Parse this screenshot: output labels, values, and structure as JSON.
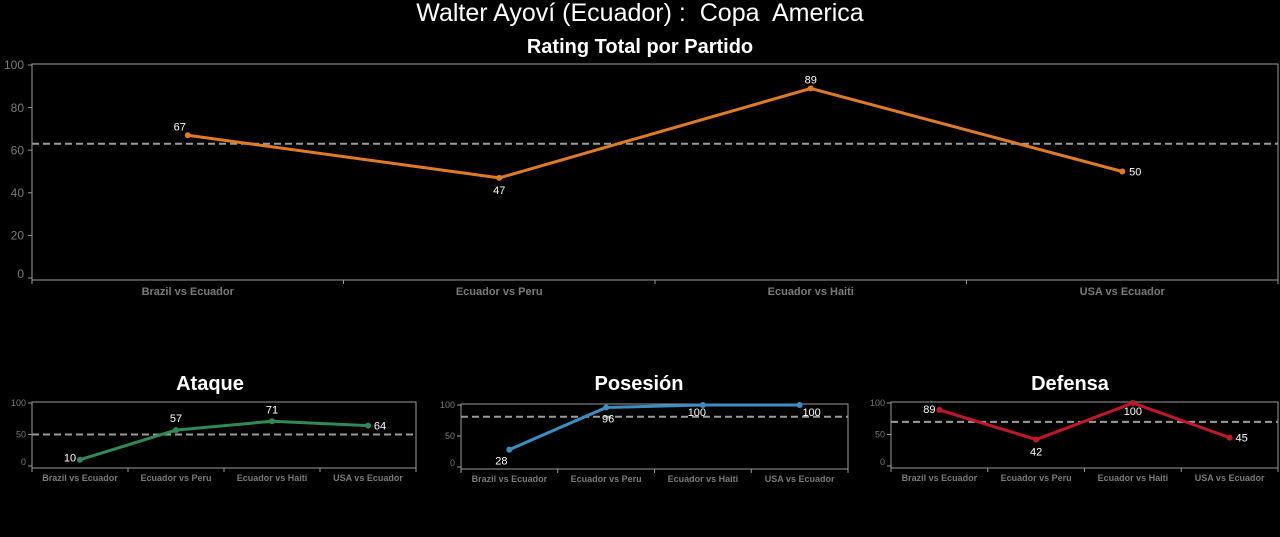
{
  "header": {
    "title": "Walter Ayoví (Ecuador) :  Copa  America"
  },
  "chart_data": [
    {
      "type": "line",
      "title": "Rating Total por Partido",
      "categories": [
        "Brazil vs Ecuador",
        "Ecuador vs Peru",
        "Ecuador vs Haiti",
        "USA vs Ecuador"
      ],
      "values": [
        67,
        47,
        89,
        50
      ],
      "reference_line": 63,
      "ylim": [
        0,
        100
      ],
      "yticks": [
        0,
        20,
        40,
        60,
        80,
        100
      ],
      "color": "#e07b25",
      "grid": false
    },
    {
      "type": "line",
      "title": "Ataque",
      "categories": [
        "Brazil vs Ecuador",
        "Ecuador vs Peru",
        "Ecuador vs Haiti",
        "USA vs Ecuador"
      ],
      "values": [
        10,
        57,
        71,
        64
      ],
      "reference_line": 50,
      "ylim": [
        0,
        100
      ],
      "yticks": [
        0,
        50,
        100
      ],
      "color": "#2e8b57",
      "grid": false
    },
    {
      "type": "line",
      "title": "Posesión",
      "categories": [
        "Brazil vs Ecuador",
        "Ecuador vs Peru",
        "Ecuador vs Haiti",
        "USA vs Ecuador"
      ],
      "values": [
        28,
        96,
        100,
        100
      ],
      "reference_line": 81,
      "ylim": [
        0,
        100
      ],
      "yticks": [
        0,
        50,
        100
      ],
      "color": "#3a8fc0",
      "grid": false
    },
    {
      "type": "line",
      "title": "Defensa",
      "categories": [
        "Brazil vs Ecuador",
        "Ecuador vs Peru",
        "Ecuador vs Haiti",
        "USA vs Ecuador"
      ],
      "values": [
        89,
        42,
        100,
        45
      ],
      "reference_line": 70,
      "ylim": [
        0,
        100
      ],
      "yticks": [
        0,
        50,
        100
      ],
      "color": "#c0182a",
      "grid": false
    }
  ]
}
